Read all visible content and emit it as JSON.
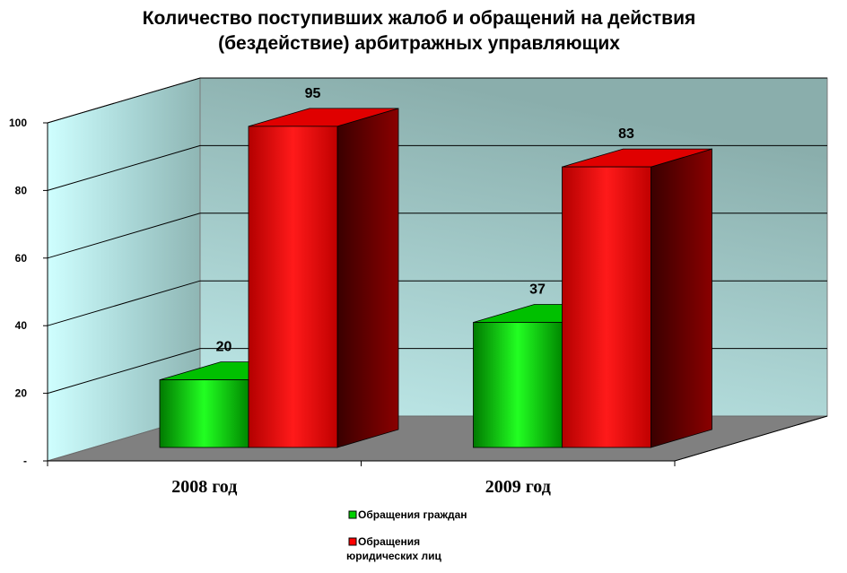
{
  "chart_data": {
    "type": "bar",
    "title": [
      "Количество поступивших жалоб и обращений на действия",
      "(бездействие) арбитражных управляющих"
    ],
    "categories": [
      "2008 год",
      "2009 год"
    ],
    "series": [
      {
        "name": "Обращения граждан",
        "values": [
          20,
          37
        ],
        "color": "#00d000"
      },
      {
        "name": "Обращения юридических лиц",
        "values": [
          95,
          83
        ],
        "color": "#ff0000"
      }
    ],
    "data_labels": [
      [
        "20",
        "37"
      ],
      [
        "95",
        "83"
      ]
    ],
    "yticks": [
      "-",
      "20",
      "40",
      "60",
      "80",
      "100"
    ],
    "ylim": [
      0,
      100
    ],
    "grid": true,
    "legend": {
      "position": "bottom",
      "items": [
        {
          "lines": [
            "Обращения граждан"
          ],
          "color": "#00d000"
        },
        {
          "lines": [
            "Обращения",
            "юридических лиц"
          ],
          "color": "#ff0000"
        }
      ]
    }
  }
}
